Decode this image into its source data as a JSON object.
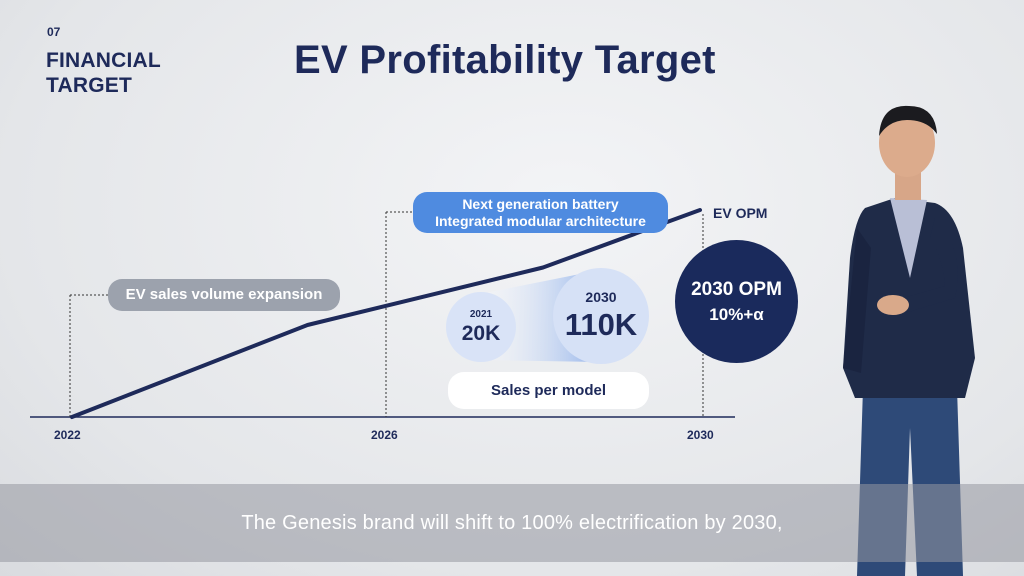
{
  "section": {
    "number": "07",
    "title_line1": "FINANCIAL",
    "title_line2": "TARGET"
  },
  "title": "EV Profitability Target",
  "chart_data": {
    "type": "line",
    "x": [
      2022,
      2025,
      2028,
      2030
    ],
    "series": [
      {
        "name": "EV OPM",
        "values": [
          0,
          0.32,
          0.52,
          0.72
        ]
      }
    ],
    "xlim": [
      2022,
      2030
    ],
    "tick_labels": [
      "2022",
      "2026",
      "2030"
    ]
  },
  "annotations": {
    "sales_expansion": "EV sales volume expansion",
    "battery_line1": "Next generation battery",
    "battery_line2": "Integrated modular architecture",
    "line_label": "EV OPM"
  },
  "sales_per_model": {
    "year_2021": "2021",
    "value_2021": "20K",
    "year_2030": "2030",
    "value_2030": "110K",
    "label": "Sales per model"
  },
  "opm_target": {
    "line1": "2030 OPM",
    "line2": "10%+α"
  },
  "subtitle": "The Genesis brand will shift to 100% electrification by 2030,",
  "colors": {
    "navy": "#1e2a5a",
    "accent_blue": "#4f8be0",
    "gray_pill": "#9ca2ad"
  }
}
